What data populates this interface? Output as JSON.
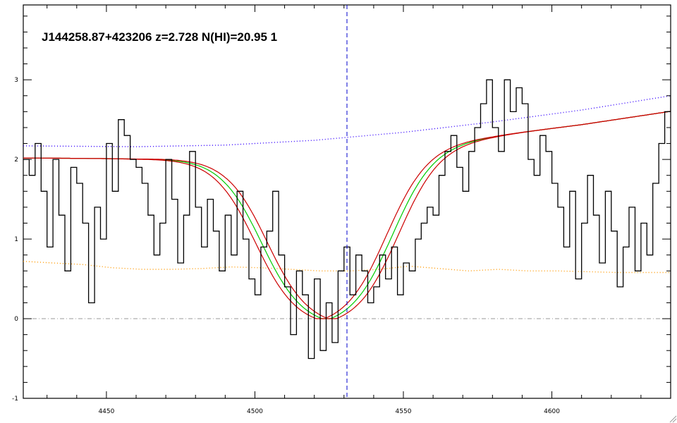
{
  "chart_data": {
    "type": "line",
    "title": "J144258.87+423206 z=2.728 N(HI)=20.95 1",
    "xlabel": "",
    "ylabel": "",
    "xlim": [
      4422,
      4640
    ],
    "ylim": [
      -1,
      3.94
    ],
    "x_ticks": [
      4450,
      4500,
      4550,
      4600
    ],
    "x_tick_labels": [
      "4450",
      "4500",
      "4550",
      "4600"
    ],
    "y_ticks": [
      -1,
      0,
      1,
      2,
      3
    ],
    "y_tick_labels": [
      "-1",
      "0",
      "1",
      "2",
      "3"
    ],
    "grid": false,
    "colors": {
      "flux": "#000000",
      "error": "#ff9900",
      "continuum": "#3300ff",
      "fit": "#00cc00",
      "fit_bounds": "#cc0000",
      "zero_line": "#999999",
      "center_line": "#0000cc"
    },
    "center_wavelength": 4531,
    "zero_level": 0,
    "series": [
      {
        "role": "flux",
        "style": "steps",
        "x": [
          4422,
          4424,
          4426,
          4428,
          4430,
          4432,
          4434,
          4436,
          4438,
          4440,
          4442,
          4444,
          4446,
          4448,
          4450,
          4452,
          4454,
          4456,
          4458,
          4460,
          4462,
          4464,
          4466,
          4468,
          4470,
          4472,
          4474,
          4476,
          4478,
          4480,
          4482,
          4484,
          4486,
          4488,
          4490,
          4492,
          4494,
          4496,
          4498,
          4500,
          4502,
          4504,
          4506,
          4508,
          4510,
          4512,
          4514,
          4516,
          4518,
          4520,
          4522,
          4524,
          4526,
          4528,
          4530,
          4532,
          4534,
          4536,
          4538,
          4540,
          4542,
          4544,
          4546,
          4548,
          4550,
          4552,
          4554,
          4556,
          4558,
          4560,
          4562,
          4564,
          4566,
          4568,
          4570,
          4572,
          4574,
          4576,
          4578,
          4580,
          4582,
          4584,
          4586,
          4588,
          4590,
          4592,
          4594,
          4596,
          4598,
          4600,
          4602,
          4604,
          4606,
          4608,
          4610,
          4612,
          4614,
          4616,
          4618,
          4620,
          4622,
          4624,
          4626,
          4628,
          4630,
          4632,
          4634,
          4636,
          4638,
          4640
        ],
        "values": [
          2.0,
          1.8,
          2.2,
          1.6,
          0.9,
          2.0,
          1.3,
          0.6,
          1.9,
          1.7,
          1.2,
          0.2,
          1.4,
          1.0,
          2.2,
          1.6,
          2.5,
          2.3,
          2.0,
          1.9,
          1.7,
          1.3,
          0.8,
          1.2,
          2.0,
          1.5,
          0.7,
          1.3,
          2.1,
          1.4,
          0.9,
          1.5,
          1.1,
          0.6,
          1.3,
          0.8,
          1.6,
          1.0,
          0.5,
          0.3,
          0.9,
          1.1,
          1.6,
          0.8,
          0.4,
          -0.2,
          0.6,
          0.3,
          -0.5,
          0.5,
          -0.4,
          0.2,
          -0.3,
          0.6,
          0.9,
          0.3,
          0.8,
          0.6,
          0.2,
          0.4,
          0.8,
          0.5,
          0.9,
          0.3,
          0.7,
          0.6,
          1.0,
          1.2,
          1.4,
          1.3,
          1.8,
          2.1,
          2.3,
          1.9,
          1.6,
          2.1,
          2.4,
          2.7,
          3.0,
          2.4,
          2.1,
          3.0,
          2.6,
          2.9,
          2.7,
          2.0,
          1.8,
          2.3,
          2.1,
          1.7,
          1.4,
          0.9,
          1.6,
          0.5,
          1.2,
          1.8,
          1.3,
          0.7,
          1.6,
          1.1,
          0.4,
          0.9,
          1.4,
          0.6,
          1.2,
          0.8,
          1.7,
          2.2,
          2.6,
          2.8
        ]
      },
      {
        "role": "error",
        "style": "dotted",
        "x": [
          4422,
          4432,
          4442,
          4452,
          4462,
          4472,
          4482,
          4492,
          4502,
          4512,
          4522,
          4532,
          4542,
          4552,
          4562,
          4572,
          4582,
          4592,
          4602,
          4612,
          4622,
          4632,
          4640
        ],
        "values": [
          0.72,
          0.7,
          0.68,
          0.64,
          0.62,
          0.62,
          0.63,
          0.65,
          0.64,
          0.62,
          0.6,
          0.6,
          0.62,
          0.66,
          0.63,
          0.6,
          0.62,
          0.6,
          0.6,
          0.59,
          0.58,
          0.58,
          0.58
        ]
      },
      {
        "role": "continuum",
        "style": "dotted",
        "x": [
          4422,
          4460,
          4490,
          4520,
          4550,
          4580,
          4610,
          4640
        ],
        "values": [
          2.17,
          2.16,
          2.18,
          2.24,
          2.34,
          2.47,
          2.62,
          2.8
        ]
      }
    ],
    "dla_model": {
      "center": 4524,
      "profiles": [
        {
          "role": "fit",
          "half_width": 22,
          "edge_sharpness": 7
        },
        {
          "role": "fit_lower",
          "half_width": 24,
          "edge_sharpness": 7
        },
        {
          "role": "fit_upper",
          "half_width": 20,
          "edge_sharpness": 7
        }
      ]
    }
  }
}
